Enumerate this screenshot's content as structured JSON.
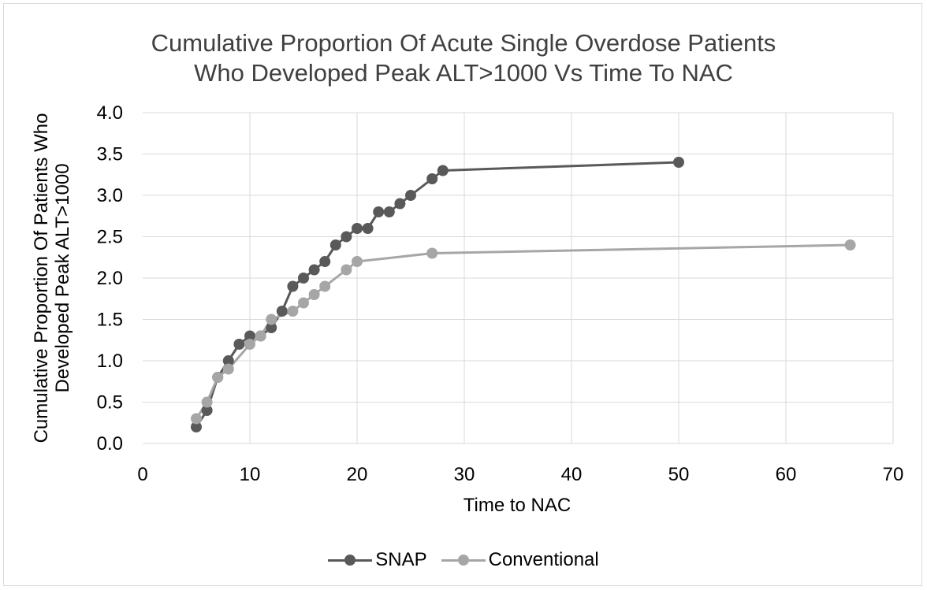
{
  "chart_data": {
    "type": "line",
    "title_lines": [
      "Cumulative Proportion Of Acute Single Overdose Patients",
      "Who Developed Peak ALT>1000 Vs Time To NAC"
    ],
    "xlabel": "Time to NAC",
    "ylabel_lines": [
      "Cumulative Proportion Of Patients Who",
      "Developed Peak ALT>1000"
    ],
    "xlim": [
      0,
      70
    ],
    "ylim": [
      0,
      4.0
    ],
    "x_ticks": [
      "0",
      "10",
      "20",
      "30",
      "40",
      "50",
      "60",
      "70"
    ],
    "y_ticks": [
      "0.0",
      "0.5",
      "1.0",
      "1.5",
      "2.0",
      "2.5",
      "3.0",
      "3.5",
      "4.0"
    ],
    "grid": true,
    "legend_position": "bottom",
    "series": [
      {
        "name": "SNAP",
        "color": "#595959",
        "x": [
          5,
          6,
          7,
          8,
          9,
          10,
          11,
          12,
          13,
          14,
          15,
          16,
          17,
          18,
          19,
          20,
          21,
          22,
          23,
          24,
          25,
          27,
          28,
          50
        ],
        "y": [
          0.2,
          0.4,
          0.8,
          1.0,
          1.2,
          1.3,
          1.3,
          1.4,
          1.6,
          1.9,
          2.0,
          2.1,
          2.2,
          2.4,
          2.5,
          2.6,
          2.6,
          2.8,
          2.8,
          2.9,
          3.0,
          3.2,
          3.3,
          3.4
        ]
      },
      {
        "name": "Conventional",
        "color": "#a6a6a6",
        "x": [
          5,
          6,
          7,
          8,
          10,
          11,
          12,
          14,
          15,
          16,
          17,
          19,
          20,
          27,
          66
        ],
        "y": [
          0.3,
          0.5,
          0.8,
          0.9,
          1.2,
          1.3,
          1.5,
          1.6,
          1.7,
          1.8,
          1.9,
          2.1,
          2.2,
          2.3,
          2.4
        ]
      }
    ]
  }
}
